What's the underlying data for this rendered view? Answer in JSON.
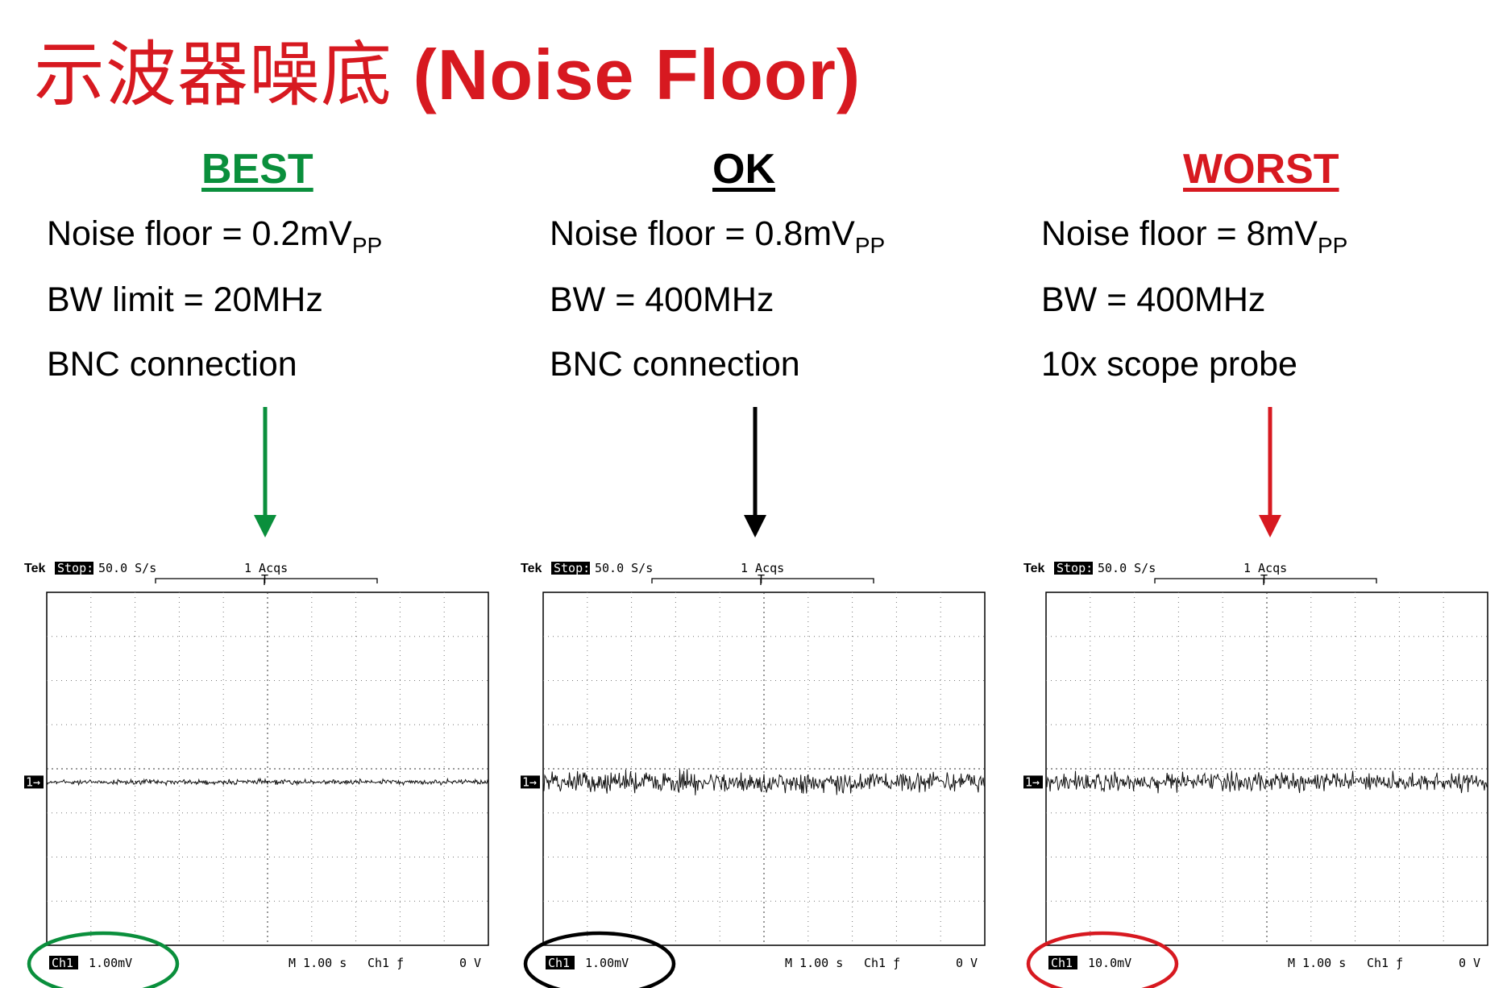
{
  "title": {
    "cn": "示波器噪底",
    "en": "(Noise Floor)"
  },
  "colors": {
    "title": "#d71920",
    "best": "#0a8f3c",
    "ok": "#000000",
    "worst": "#d71920"
  },
  "columns": [
    {
      "key": "best",
      "heading": "BEST",
      "noise_prefix": "Noise floor = 0.2mV",
      "noise_sub": "PP",
      "bw": "BW limit = 20MHz",
      "connection": "BNC connection",
      "scope": {
        "brand": "Tek",
        "state": "Stop:",
        "rate": "50.0 S/s",
        "acqs": "1 Acqs",
        "ch": "Ch1",
        "scale": "1.00mV",
        "timebase": "M 1.00 s",
        "trig": "Ch1 ƒ",
        "level": "0 V",
        "noise_amplitude_div": 0.08,
        "marker": "1→"
      }
    },
    {
      "key": "ok",
      "heading": "OK",
      "noise_prefix": "Noise floor = 0.8mV",
      "noise_sub": "PP",
      "bw": "BW = 400MHz",
      "connection": "BNC connection",
      "scope": {
        "brand": "Tek",
        "state": "Stop:",
        "rate": "50.0 S/s",
        "acqs": "1 Acqs",
        "ch": "Ch1",
        "scale": "1.00mV",
        "timebase": "M 1.00 s",
        "trig": "Ch1 ƒ",
        "level": "0 V",
        "noise_amplitude_div": 0.35,
        "marker": "1→"
      }
    },
    {
      "key": "worst",
      "heading": "WORST",
      "noise_prefix": "Noise floor = 8mV",
      "noise_sub": "PP",
      "bw": "BW = 400MHz",
      "connection": "10x scope probe",
      "scope": {
        "brand": "Tek",
        "state": "Stop:",
        "rate": "50.0 S/s",
        "acqs": "1 Acqs",
        "ch": "Ch1",
        "scale": "10.0mV",
        "timebase": "M 1.00 s",
        "trig": "Ch1 ƒ",
        "level": "0 V",
        "noise_amplitude_div": 0.3,
        "marker": "1→"
      }
    }
  ]
}
